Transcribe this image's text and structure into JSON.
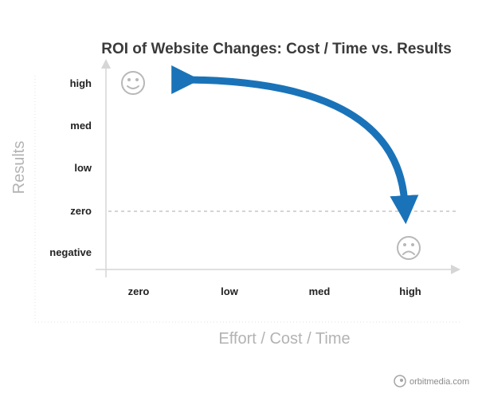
{
  "chart_data": {
    "type": "scatter",
    "title": "ROI of Website Changes: Cost / Time vs. Results",
    "xlabel": "Effort / Cost / Time",
    "ylabel": "Results",
    "x_categories": [
      "zero",
      "low",
      "med",
      "high"
    ],
    "y_categories": [
      "high",
      "med",
      "low",
      "zero",
      "negative"
    ],
    "grid": false,
    "reference_line": {
      "y": "zero",
      "style": "dashed"
    },
    "points": [
      {
        "x": "zero",
        "y": "high",
        "marker": "smiley-face-icon"
      },
      {
        "x": "high",
        "y": "negative",
        "marker": "frowny-face-icon"
      }
    ],
    "annotation_arrow": {
      "from": {
        "x": "high",
        "y": "zero"
      },
      "to": {
        "x": "zero",
        "y": "high"
      },
      "color": "#1a73b8",
      "bidirectional": true
    }
  },
  "brand": {
    "text": "orbitmedia.com",
    "icon": "orbit-logo-icon"
  },
  "colors": {
    "arrow": "#1a73b8",
    "axis": "#d6d6d6",
    "face": "#b8b8b8",
    "axis_label": "#b3b3b3"
  }
}
